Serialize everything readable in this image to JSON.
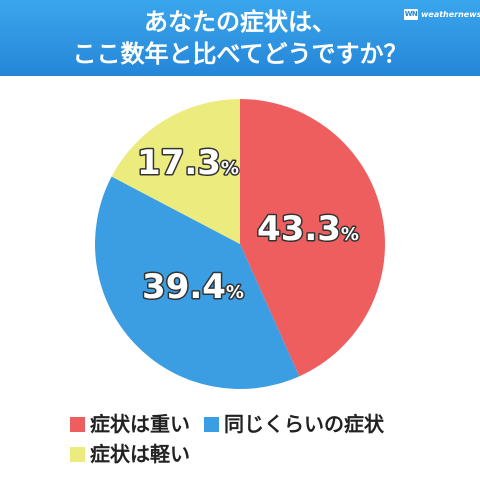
{
  "header": {
    "title_line1": "あなたの症状は、",
    "title_line2": "ここ数年と比べてどうですか？",
    "logo_text": "weathernews",
    "logo_mark": "WN"
  },
  "colors": {
    "header_bg": "#2a8fdf",
    "slice_heavy": "#ef5e5e",
    "slice_same": "#3b9ee3",
    "slice_light": "#ecec7e",
    "label_text": "#ffffff",
    "label_stroke": "#333333"
  },
  "chart_data": {
    "type": "pie",
    "title": "あなたの症状は、ここ数年と比べてどうですか？",
    "slices": [
      {
        "label": "症状は重い",
        "value": 43.3,
        "display": "43.3",
        "unit": "%",
        "color": "#ef5e5e"
      },
      {
        "label": "同じくらいの症状",
        "value": 39.4,
        "display": "39.4",
        "unit": "%",
        "color": "#3b9ee3"
      },
      {
        "label": "症状は軽い",
        "value": 17.3,
        "display": "17.3",
        "unit": "%",
        "color": "#ecec7e"
      }
    ],
    "start": "top",
    "direction": "clockwise",
    "legend_position": "bottom"
  },
  "legend": {
    "items": [
      {
        "label": "症状は重い",
        "color": "#ef5e5e"
      },
      {
        "label": "同じくらいの症状",
        "color": "#3b9ee3"
      },
      {
        "label": "症状は軽い",
        "color": "#ecec7e"
      }
    ]
  }
}
